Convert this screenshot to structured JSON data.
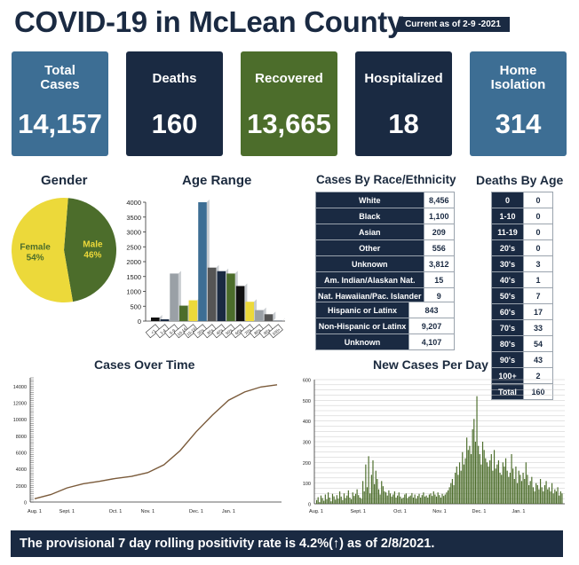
{
  "header": {
    "title": "COVID-19 in McLean County",
    "current_as_of": "Current as of 2-9 -2021"
  },
  "stats": [
    {
      "label": "Total Cases",
      "value": "14,157",
      "color": "#3d6e94"
    },
    {
      "label": "Deaths",
      "value": "160",
      "color": "#1a2a42"
    },
    {
      "label": "Recovered",
      "value": "13,665",
      "color": "#4c6d2b"
    },
    {
      "label": "Hospitalized",
      "value": "18",
      "color": "#1a2a42"
    },
    {
      "label": "Home Isolation",
      "value": "314",
      "color": "#3d6e94"
    }
  ],
  "sections": {
    "gender": "Gender",
    "age_range": "Age Range",
    "race": "Cases By Race/Ethnicity",
    "deaths_age": "Deaths By Age",
    "cases_time": "Cases Over Time",
    "new_cases": "New Cases Per Day"
  },
  "race_table": [
    {
      "label": "White",
      "value": "8,456"
    },
    {
      "label": "Black",
      "value": "1,100"
    },
    {
      "label": "Asian",
      "value": "209"
    },
    {
      "label": "Other",
      "value": "556"
    },
    {
      "label": "Unknown",
      "value": "3,812"
    },
    {
      "label": "Am. Indian/Alaskan Nat.",
      "value": "15"
    },
    {
      "label": "Nat. Hawaiian/Pac. Islander",
      "value": "9"
    }
  ],
  "ethnicity_table": [
    {
      "label": "Hispanic or Latinx",
      "value": "843"
    },
    {
      "label": "Non-Hispanic or Latinx",
      "value": "9,207"
    },
    {
      "label": "Unknown",
      "value": "4,107"
    }
  ],
  "deaths_table": [
    {
      "label": "0",
      "value": "0"
    },
    {
      "label": "1-10",
      "value": "0"
    },
    {
      "label": "11-19",
      "value": "0"
    },
    {
      "label": "20's",
      "value": "0"
    },
    {
      "label": "30's",
      "value": "3"
    },
    {
      "label": "40's",
      "value": "1"
    },
    {
      "label": "50's",
      "value": "7"
    },
    {
      "label": "60's",
      "value": "17"
    },
    {
      "label": "70's",
      "value": "33"
    },
    {
      "label": "80's",
      "value": "54"
    },
    {
      "label": "90's",
      "value": "43"
    },
    {
      "label": "100+",
      "value": "2"
    },
    {
      "label": "Total",
      "value": "160"
    }
  ],
  "banner": "The provisional 7 day rolling positivity rate is 4.2%(↑) as of 2/8/2021.",
  "chart_data": [
    {
      "type": "pie",
      "title": "Gender",
      "labels": [
        "Male",
        "Female"
      ],
      "values": [
        46,
        54
      ],
      "value_labels": [
        "46%",
        "54%"
      ],
      "colors": [
        "#4c6d2b",
        "#ecd93a"
      ]
    },
    {
      "type": "bar",
      "title": "Age Range",
      "categories": [
        "<1",
        "1-4",
        "5-9",
        "10-14",
        "15-19",
        "20's",
        "30's",
        "40's",
        "50's",
        "60's",
        "70's",
        "80's",
        "90's",
        "100+"
      ],
      "values": [
        120,
        60,
        1600,
        520,
        700,
        4000,
        1800,
        1680,
        1600,
        1180,
        650,
        370,
        230,
        10
      ],
      "colors": [
        "#111111",
        "#1a2a42",
        "#9aa0a6",
        "#4c6d2b",
        "#ecd93a",
        "#3d6e94",
        "#555555",
        "#1a2a42",
        "#4c6d2b",
        "#111111",
        "#ecd93a",
        "#9aa0a6",
        "#555555",
        "#1a2a42"
      ],
      "yticks": [
        0,
        500,
        1000,
        1500,
        2000,
        2500,
        3000,
        3500,
        4000
      ],
      "ylim": [
        0,
        4000
      ]
    },
    {
      "type": "line",
      "title": "Cases Over Time",
      "x": [
        "Aug. 1",
        "Aug. 15",
        "Sept. 1",
        "Sept. 8",
        "Sept. 15",
        "Oct. 1",
        "Oct. 15",
        "Nov. 1",
        "Nov. 8",
        "Nov. 15",
        "Dec. 1",
        "Dec. 15",
        "Jan. 1",
        "Jan. 15",
        "Feb. 1",
        "Feb. 9"
      ],
      "y": [
        400,
        900,
        1700,
        2200,
        2500,
        2850,
        3100,
        3550,
        4500,
        6200,
        8500,
        10500,
        12300,
        13300,
        13900,
        14157
      ],
      "xticks": [
        "Aug. 1",
        "Sept. 1",
        "Oct. 1",
        "Nov. 1",
        "Dec. 1",
        "Jan. 1"
      ],
      "yticks": [
        0,
        2000,
        4000,
        6000,
        8000,
        10000,
        12000,
        14000
      ],
      "ylim": [
        0,
        15000
      ],
      "color": "#7a5a3a"
    },
    {
      "type": "bar",
      "title": "New Cases Per Day",
      "x_start": "Aug. 1",
      "x_end": "Feb. 9",
      "values": [
        18,
        32,
        8,
        40,
        28,
        15,
        45,
        22,
        55,
        30,
        12,
        48,
        36,
        20,
        42,
        25,
        60,
        35,
        18,
        50,
        28,
        40,
        65,
        30,
        22,
        55,
        38,
        48,
        70,
        42,
        30,
        25,
        110,
        60,
        190,
        80,
        230,
        50,
        140,
        210,
        95,
        160,
        120,
        70,
        45,
        110,
        85,
        60,
        55,
        40,
        65,
        50,
        35,
        45,
        60,
        30,
        40,
        55,
        35,
        25,
        30,
        45,
        50,
        28,
        35,
        40,
        52,
        30,
        45,
        25,
        38,
        48,
        30,
        42,
        55,
        35,
        40,
        30,
        45,
        50,
        38,
        60,
        45,
        35,
        55,
        42,
        30,
        48,
        38,
        45,
        55,
        65,
        80,
        100,
        120,
        90,
        150,
        180,
        140,
        200,
        160,
        250,
        190,
        220,
        320,
        260,
        280,
        240,
        360,
        410,
        300,
        520,
        280,
        240,
        190,
        300,
        260,
        220,
        200,
        180,
        210,
        240,
        160,
        260,
        170,
        190,
        210,
        150,
        140,
        200,
        180,
        220,
        160,
        130,
        150,
        240,
        170,
        120,
        180,
        100,
        160,
        140,
        110,
        150,
        120,
        200,
        140,
        90,
        110,
        130,
        80,
        60,
        100,
        90,
        70,
        120,
        80,
        60,
        90,
        110,
        70,
        80,
        60,
        100,
        50,
        70,
        60,
        80,
        40,
        60,
        50
      ],
      "xticks": [
        "Aug. 1",
        "Sept. 1",
        "Oct. 1",
        "Nov. 1",
        "Dec. 1",
        "Jan. 1"
      ],
      "yticks": [
        0,
        100,
        200,
        300,
        400,
        500,
        600
      ],
      "ylim": [
        0,
        600
      ],
      "color": "#4c6d2b"
    }
  ]
}
